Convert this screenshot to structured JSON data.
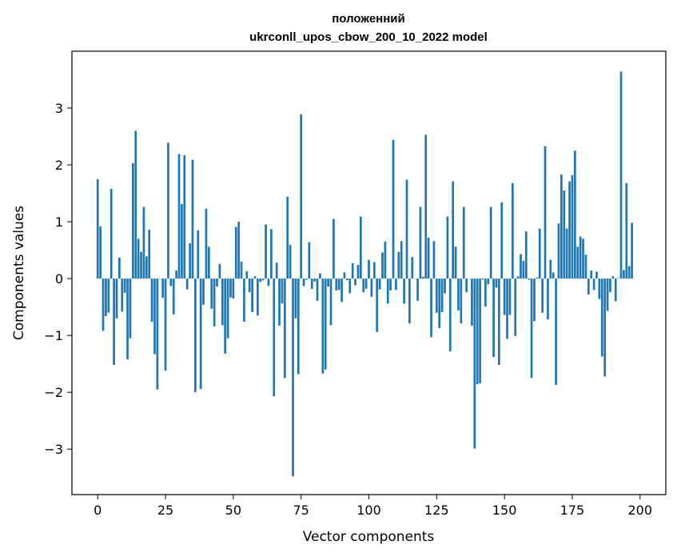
{
  "chart_data": {
    "type": "bar",
    "title_line1": "положенний",
    "title_line2": "ukrconll_upos_cbow_200_10_2022 model",
    "xlabel": "Vector components",
    "ylabel": "Components values",
    "xlim": [
      -9.5,
      209.5
    ],
    "ylim": [
      -3.8,
      4.0
    ],
    "x_ticks": [
      0,
      25,
      50,
      75,
      100,
      125,
      150,
      175,
      200
    ],
    "y_ticks": [
      -3,
      -2,
      -1,
      0,
      1,
      2,
      3
    ],
    "x_tick_labels": [
      "0",
      "25",
      "50",
      "75",
      "100",
      "125",
      "150",
      "175",
      "200"
    ],
    "y_tick_labels": [
      "−3",
      "−2",
      "−1",
      "0",
      "1",
      "2",
      "3"
    ],
    "bar_color": "#1f77b4",
    "values": [
      1.75,
      0.92,
      -0.92,
      -0.66,
      -0.6,
      1.58,
      -1.52,
      -0.7,
      0.37,
      -0.58,
      -0.25,
      -1.42,
      -1.05,
      2.03,
      2.6,
      0.7,
      0.47,
      1.26,
      0.39,
      0.86,
      -0.76,
      -1.33,
      -1.95,
      0.0,
      -0.34,
      -1.62,
      2.39,
      -0.13,
      -0.63,
      0.14,
      2.19,
      1.31,
      2.17,
      -0.19,
      0.62,
      2.09,
      -2.0,
      0.85,
      -1.94,
      -0.46,
      1.23,
      0.56,
      -0.53,
      -0.84,
      -0.14,
      0.26,
      -0.82,
      -1.32,
      -1.05,
      -0.33,
      -0.35,
      0.91,
      1.0,
      0.3,
      -0.76,
      0.13,
      -0.24,
      -0.59,
      0.04,
      -0.65,
      -0.06,
      -0.03,
      0.95,
      -0.13,
      0.87,
      -2.07,
      0.28,
      -0.83,
      -0.44,
      -1.75,
      1.44,
      0.59,
      -3.48,
      -0.7,
      -1.68,
      2.89,
      -0.13,
      -0.02,
      0.64,
      -0.18,
      -0.05,
      -0.39,
      0.09,
      -1.67,
      -1.6,
      -0.14,
      -0.82,
      1.05,
      -0.21,
      -0.2,
      -0.41,
      0.11,
      -0.03,
      -0.26,
      0.27,
      -0.12,
      0.24,
      1.09,
      -0.24,
      -0.18,
      0.33,
      -0.32,
      0.29,
      -0.94,
      -0.19,
      0.46,
      0.65,
      -0.44,
      -0.21,
      2.44,
      -0.2,
      0.47,
      0.66,
      -0.44,
      1.74,
      -0.79,
      0.38,
      0.0,
      -0.39,
      1.26,
      0.03,
      2.53,
      0.72,
      -1.03,
      0.66,
      -0.6,
      -0.87,
      -0.59,
      -0.26,
      1.09,
      -1.28,
      1.71,
      0.56,
      -0.56,
      -0.79,
      1.26,
      -0.24,
      0.0,
      -0.83,
      -2.99,
      -1.86,
      -1.84,
      -0.02,
      -0.49,
      -0.1,
      1.26,
      -1.38,
      -0.16,
      -1.52,
      1.34,
      -0.64,
      -1.06,
      -0.64,
      1.68,
      -1.01,
      0.04,
      0.43,
      0.31,
      0.83,
      -0.02,
      -1.75,
      -0.75,
      0.02,
      0.88,
      -0.6,
      2.33,
      -0.72,
      0.33,
      0.11,
      -1.87,
      0.97,
      1.83,
      1.55,
      0.88,
      1.71,
      1.82,
      2.25,
      0.56,
      0.74,
      0.7,
      0.42,
      -0.28,
      0.14,
      -0.2,
      0.12,
      -0.36,
      -1.37,
      -1.72,
      -0.57,
      -0.24,
      0.04,
      -0.4,
      0.01,
      3.64,
      0.15,
      1.68,
      0.22,
      0.98
    ],
    "grid": false,
    "legend": "none"
  }
}
